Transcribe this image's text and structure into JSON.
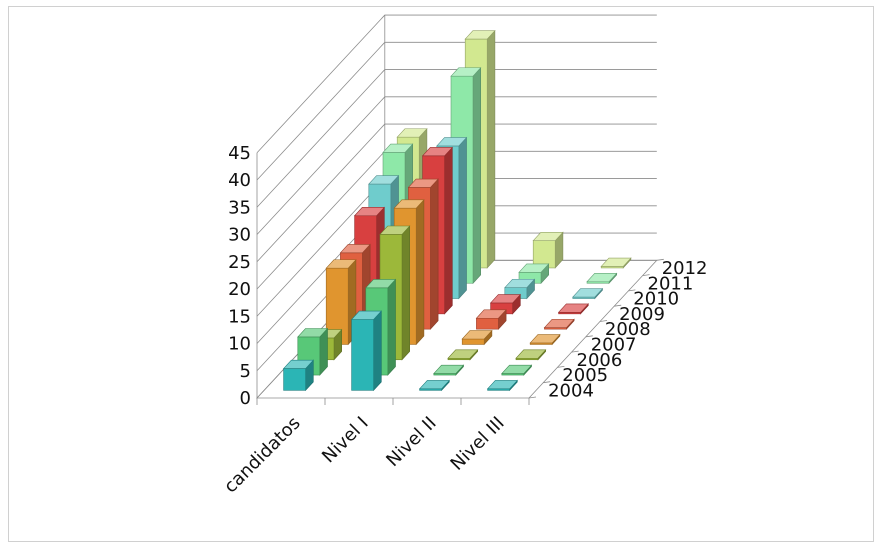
{
  "chart_data": {
    "type": "bar",
    "categories": [
      "candidatos",
      "Nivel I",
      "Nivel II",
      "Nivel III"
    ],
    "series": [
      {
        "name": "2004",
        "color": "#2bb5b5",
        "values": [
          4,
          13,
          0,
          0
        ]
      },
      {
        "name": "2005",
        "color": "#58c878",
        "values": [
          7,
          16,
          0,
          0
        ]
      },
      {
        "name": "2006",
        "color": "#9cb83a",
        "values": [
          4,
          23,
          0,
          0
        ]
      },
      {
        "name": "2007",
        "color": "#e0952f",
        "values": [
          14,
          25,
          1,
          0
        ]
      },
      {
        "name": "2008",
        "color": "#e06040",
        "values": [
          14,
          26,
          2,
          0
        ]
      },
      {
        "name": "2009",
        "color": "#d84040",
        "values": [
          18,
          29,
          2,
          0
        ]
      },
      {
        "name": "2010",
        "color": "#6fcccc",
        "values": [
          21,
          28,
          2,
          0
        ]
      },
      {
        "name": "2011",
        "color": "#8ee8a8",
        "values": [
          24,
          38,
          2,
          0
        ]
      },
      {
        "name": "2012",
        "color": "#d2e890",
        "values": [
          24,
          42,
          5,
          0
        ]
      }
    ],
    "ylim": [
      0,
      45
    ],
    "yticks": [
      "0",
      "5",
      "10",
      "15",
      "20",
      "25",
      "30",
      "35",
      "40",
      "45"
    ],
    "grid": true,
    "legend": "none"
  }
}
